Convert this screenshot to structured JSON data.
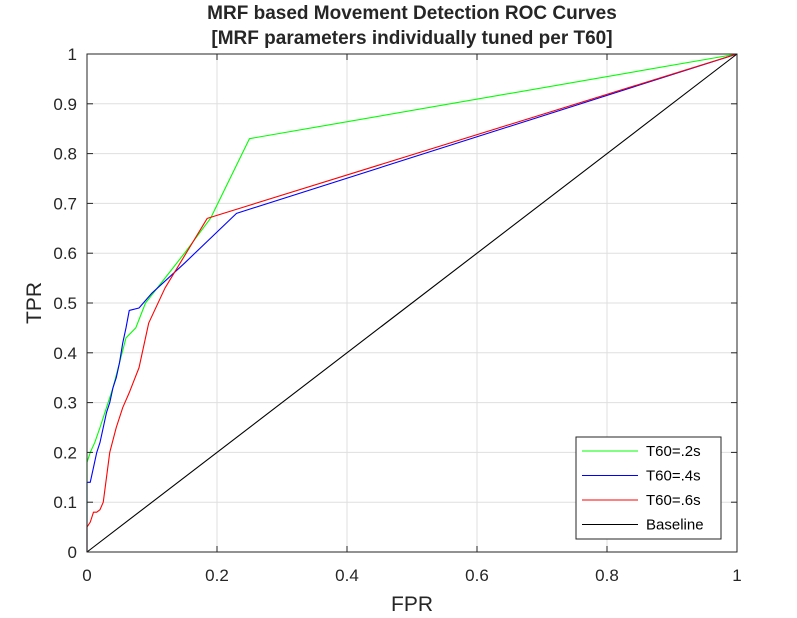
{
  "chart_data": {
    "type": "line",
    "title": "MRF based Movement Detection ROC Curves",
    "subtitle": "[MRF parameters individually tuned per T60]",
    "xlabel": "FPR",
    "ylabel": "TPR",
    "xlim": [
      0,
      1
    ],
    "ylim": [
      0,
      1
    ],
    "xticks": [
      "0",
      "0.2",
      "0.4",
      "0.6",
      "0.8",
      "1"
    ],
    "yticks": [
      "0",
      "0.1",
      "0.2",
      "0.3",
      "0.4",
      "0.5",
      "0.6",
      "0.7",
      "0.8",
      "0.9",
      "1"
    ],
    "grid": true,
    "legend_position": "bottom-right",
    "series": [
      {
        "name": "T60=.2s",
        "color": "#00ff00",
        "x": [
          0,
          0,
          0.005,
          0.012,
          0.02,
          0.03,
          0.04,
          0.05,
          0.06,
          0.075,
          0.09,
          0.12,
          0.15,
          0.19,
          0.25,
          1
        ],
        "y": [
          0,
          0.18,
          0.2,
          0.22,
          0.25,
          0.29,
          0.33,
          0.38,
          0.43,
          0.45,
          0.5,
          0.55,
          0.6,
          0.67,
          0.83,
          1
        ]
      },
      {
        "name": "T60=.4s",
        "color": "#0000ff",
        "x": [
          0,
          0,
          0.005,
          0.01,
          0.015,
          0.02,
          0.025,
          0.03,
          0.035,
          0.04,
          0.045,
          0.05,
          0.055,
          0.06,
          0.065,
          0.08,
          0.1,
          0.15,
          0.23,
          1
        ],
        "y": [
          0,
          0.14,
          0.14,
          0.17,
          0.2,
          0.22,
          0.25,
          0.28,
          0.3,
          0.33,
          0.35,
          0.38,
          0.42,
          0.45,
          0.485,
          0.49,
          0.52,
          0.58,
          0.68,
          1
        ]
      },
      {
        "name": "T60=.6s",
        "color": "#ff0000",
        "x": [
          0,
          0,
          0.005,
          0.01,
          0.015,
          0.02,
          0.025,
          0.03,
          0.035,
          0.045,
          0.055,
          0.065,
          0.08,
          0.095,
          0.12,
          0.185,
          1
        ],
        "y": [
          0,
          0.05,
          0.06,
          0.08,
          0.08,
          0.085,
          0.1,
          0.15,
          0.2,
          0.25,
          0.29,
          0.32,
          0.37,
          0.46,
          0.53,
          0.67,
          1
        ]
      },
      {
        "name": "Baseline",
        "color": "#000000",
        "x": [
          0,
          1
        ],
        "y": [
          0,
          1
        ]
      }
    ]
  }
}
